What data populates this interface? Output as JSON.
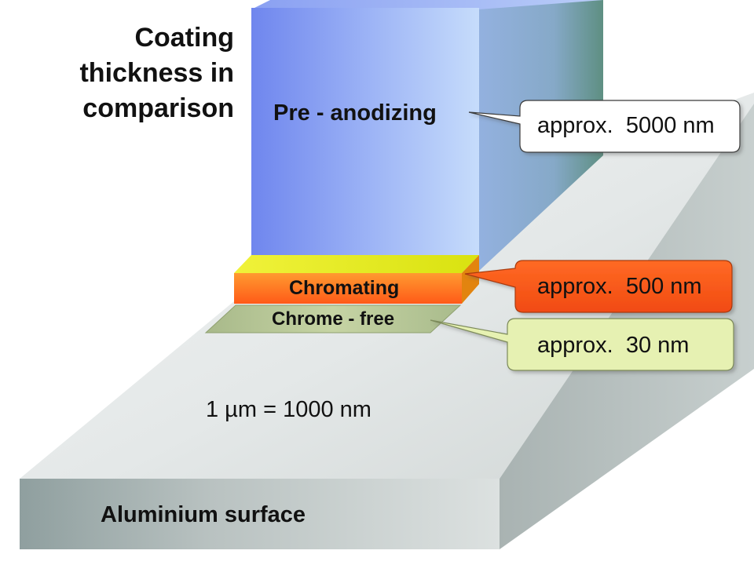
{
  "title": {
    "line1": "Coating",
    "line2": "thickness in",
    "line3": "comparison"
  },
  "layers": {
    "pre_anodizing": "Pre - anodizing",
    "chromating": "Chromating",
    "chrome_free": "Chrome - free"
  },
  "callouts": {
    "pre_anodizing": "approx.  5000 nm",
    "chromating": "approx.  500 nm",
    "chrome_free": "approx.  30 nm"
  },
  "conversion": "1 µm = 1000 nm",
  "base": {
    "label": "Aluminium surface"
  },
  "colors": {
    "pre_anodizing": "#7f97f0",
    "chromating_top": "#e6ee20",
    "chromating_front": "#ff7a20",
    "chrome_free": "#b3c490",
    "callout_chromating": "#ff5a1a",
    "callout_chrome_free": "#e8f3b4",
    "aluminium": "#c9cecd"
  }
}
